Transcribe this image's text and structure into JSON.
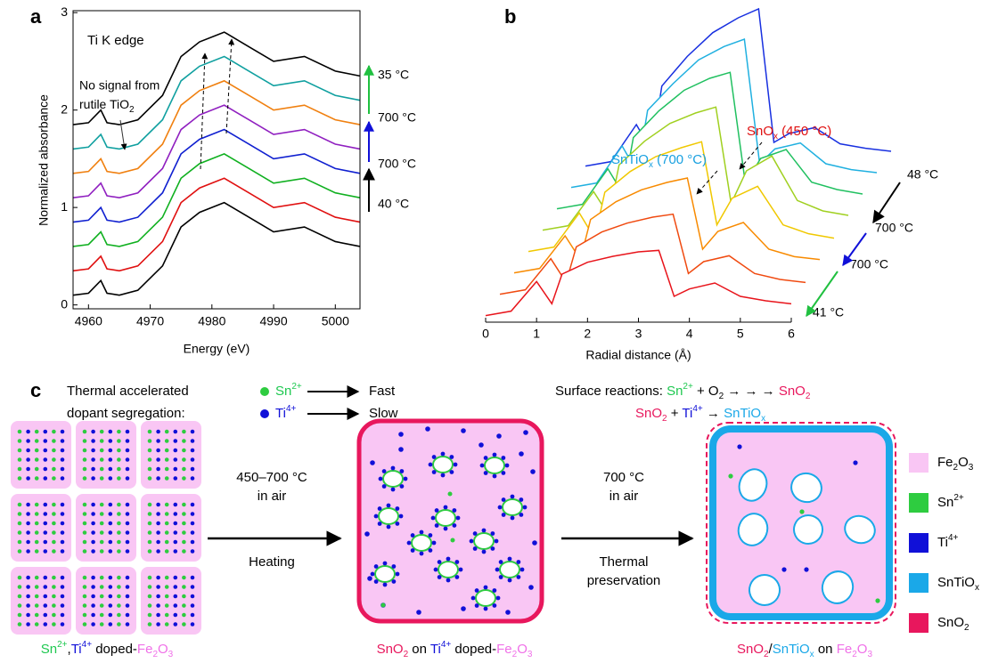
{
  "chart_data": [
    {
      "type": "line",
      "label": "a",
      "x_label": "Energy (eV)",
      "y_label": "Normalized absorbance",
      "x": [
        4957.5,
        4960,
        4962,
        4963,
        4965,
        4968,
        4972,
        4975,
        4978,
        4982,
        4986,
        4990,
        4995,
        5000,
        5004
      ],
      "xlim": [
        4957.5,
        5004
      ],
      "xticks": [
        4960,
        4970,
        4980,
        4990,
        5000
      ],
      "ylim": [
        -0.04,
        3.02
      ],
      "yticks": [
        0,
        1,
        2,
        3
      ],
      "series": [
        {
          "color": "#000000",
          "values": [
            0.1,
            0.12,
            0.25,
            0.12,
            0.1,
            0.15,
            0.4,
            0.8,
            0.95,
            1.05,
            0.9,
            0.75,
            0.8,
            0.65,
            0.6
          ]
        },
        {
          "color": "#e01010",
          "values": [
            0.35,
            0.37,
            0.5,
            0.37,
            0.35,
            0.4,
            0.65,
            1.05,
            1.2,
            1.3,
            1.15,
            1.0,
            1.05,
            0.9,
            0.85
          ]
        },
        {
          "color": "#10b020",
          "values": [
            0.6,
            0.62,
            0.75,
            0.62,
            0.6,
            0.65,
            0.9,
            1.3,
            1.45,
            1.55,
            1.4,
            1.25,
            1.3,
            1.15,
            1.1
          ]
        },
        {
          "color": "#1020d0",
          "values": [
            0.85,
            0.87,
            1.0,
            0.87,
            0.85,
            0.9,
            1.15,
            1.55,
            1.7,
            1.8,
            1.65,
            1.5,
            1.55,
            1.4,
            1.35
          ]
        },
        {
          "color": "#9020c0",
          "values": [
            1.1,
            1.12,
            1.25,
            1.12,
            1.1,
            1.15,
            1.4,
            1.8,
            1.95,
            2.05,
            1.9,
            1.75,
            1.8,
            1.65,
            1.6
          ]
        },
        {
          "color": "#f08010",
          "values": [
            1.35,
            1.37,
            1.5,
            1.37,
            1.35,
            1.4,
            1.65,
            2.05,
            2.2,
            2.3,
            2.15,
            2.0,
            2.05,
            1.9,
            1.85
          ]
        },
        {
          "color": "#10a0a0",
          "values": [
            1.6,
            1.62,
            1.75,
            1.62,
            1.6,
            1.65,
            1.9,
            2.3,
            2.45,
            2.55,
            2.4,
            2.25,
            2.3,
            2.15,
            2.1
          ]
        },
        {
          "color": "#000000",
          "values": [
            1.85,
            1.87,
            2.0,
            1.87,
            1.85,
            1.9,
            2.15,
            2.55,
            2.7,
            2.8,
            2.65,
            2.5,
            2.55,
            2.4,
            2.35
          ]
        }
      ],
      "annotations": {
        "edge": "Ti K edge",
        "no_signal": "No signal from",
        "rutile": [
          "rutile TiO",
          "2"
        ],
        "temps": [
          "35 °C",
          "700 °C",
          "700 °C",
          "40 °C"
        ]
      }
    },
    {
      "type": "waterfall",
      "label": "b",
      "x_label": "Radial distance (Å)",
      "x": [
        0,
        0.5,
        1,
        1.3,
        1.5,
        2,
        2.5,
        3,
        3.4,
        3.7,
        4,
        4.5,
        5,
        5.5,
        6
      ],
      "xlim": [
        0,
        6
      ],
      "xticks": [
        0,
        1,
        2,
        3,
        4,
        5,
        6
      ],
      "ylim": [
        0,
        1.2
      ],
      "series": [
        {
          "color": "#e8141b",
          "values": [
            0.02,
            0.05,
            0.25,
            0.1,
            0.3,
            0.38,
            0.42,
            0.45,
            0.46,
            0.15,
            0.2,
            0.24,
            0.15,
            0.12,
            0.1
          ]
        },
        {
          "color": "#f04a10",
          "values": [
            0.02,
            0.05,
            0.26,
            0.1,
            0.34,
            0.44,
            0.5,
            0.54,
            0.56,
            0.16,
            0.24,
            0.28,
            0.16,
            0.12,
            0.1
          ]
        },
        {
          "color": "#f88a00",
          "values": [
            0.02,
            0.05,
            0.27,
            0.11,
            0.38,
            0.5,
            0.58,
            0.63,
            0.66,
            0.18,
            0.3,
            0.36,
            0.18,
            0.13,
            0.11
          ]
        },
        {
          "color": "#f0c800",
          "values": [
            0.02,
            0.05,
            0.28,
            0.11,
            0.42,
            0.56,
            0.66,
            0.72,
            0.76,
            0.2,
            0.38,
            0.46,
            0.2,
            0.14,
            0.11
          ]
        },
        {
          "color": "#a0d020",
          "values": [
            0.02,
            0.05,
            0.28,
            0.12,
            0.46,
            0.62,
            0.74,
            0.81,
            0.85,
            0.2,
            0.42,
            0.52,
            0.22,
            0.15,
            0.12
          ]
        },
        {
          "color": "#20c060",
          "values": [
            0.02,
            0.05,
            0.29,
            0.12,
            0.5,
            0.68,
            0.82,
            0.9,
            0.94,
            0.19,
            0.36,
            0.42,
            0.2,
            0.15,
            0.12
          ]
        },
        {
          "color": "#20b0e0",
          "values": [
            0.02,
            0.05,
            0.3,
            0.12,
            0.54,
            0.72,
            0.88,
            0.97,
            1.02,
            0.18,
            0.28,
            0.32,
            0.18,
            0.14,
            0.12
          ]
        },
        {
          "color": "#1830e0",
          "values": [
            0.02,
            0.05,
            0.3,
            0.12,
            0.56,
            0.76,
            0.92,
            1.02,
            1.08,
            0.18,
            0.24,
            0.28,
            0.17,
            0.14,
            0.12
          ]
        }
      ],
      "annotations": {
        "snox": [
          "SnO",
          "x",
          " (450 °C)"
        ],
        "sntiox": [
          "SnTiO",
          "x",
          " (700 °C)"
        ],
        "temps": [
          "48 °C",
          "700 °C",
          "700 °C",
          "41 °C"
        ]
      }
    }
  ],
  "diagram": {
    "label": "c",
    "segregation": {
      "title": [
        "Thermal accelerated",
        "dopant segregation:"
      ],
      "rows": [
        {
          "ion": [
            "Sn",
            "2+"
          ],
          "rate": "Fast"
        },
        {
          "ion": [
            "Ti",
            "4+"
          ],
          "rate": "Slow"
        }
      ]
    },
    "reactions": [
      [
        "Surface reactions: ",
        "Sn",
        "2+",
        " + O",
        "2",
        " → → → ",
        "SnO",
        "2"
      ],
      [
        "SnO",
        "2",
        " + ",
        "Ti",
        "4+",
        " → ",
        "SnTiO",
        "x"
      ]
    ],
    "steps": [
      {
        "lines": [
          "450–700 °C",
          "in air"
        ],
        "below": [
          "Heating"
        ]
      },
      {
        "lines": [
          "700 °C",
          "in air"
        ],
        "below": [
          "Thermal",
          "preservation"
        ]
      }
    ],
    "captions": [
      [
        "Sn",
        "2+",
        ",",
        "Ti",
        "4+",
        " doped-",
        "Fe",
        "2",
        "O",
        "3"
      ],
      [
        "SnO",
        "2",
        " on ",
        "Ti",
        "4+",
        " doped-",
        "Fe",
        "2",
        "O",
        "3"
      ],
      [
        "SnO",
        "2",
        "/",
        "SnTiO",
        "x",
        " on ",
        "Fe",
        "2",
        "O",
        "3"
      ]
    ],
    "legend": [
      {
        "label": [
          "Fe",
          "2",
          "O",
          "3"
        ],
        "color": "#f9c6f4"
      },
      {
        "label": [
          "Sn",
          "2+"
        ],
        "color": "#2ecc40"
      },
      {
        "label": [
          "Ti",
          "4+"
        ],
        "color": "#1010d8"
      },
      {
        "label": [
          "SnTiO",
          "x"
        ],
        "color": "#1aa8e8"
      },
      {
        "label": [
          "SnO",
          "2"
        ],
        "color": "#e8175d"
      }
    ]
  }
}
